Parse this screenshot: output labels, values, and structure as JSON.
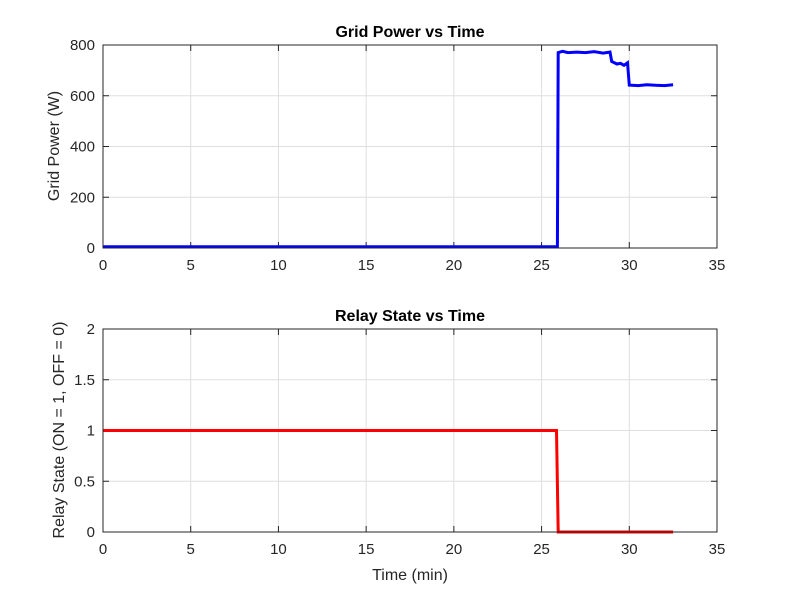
{
  "chart_data": [
    {
      "type": "line",
      "title": "Grid Power vs Time",
      "xlabel": "",
      "ylabel": "Grid Power (W)",
      "xlim": [
        0,
        35
      ],
      "ylim": [
        0,
        800
      ],
      "xticks": [
        0,
        5,
        10,
        15,
        20,
        25,
        30,
        35
      ],
      "yticks": [
        0,
        200,
        400,
        600,
        800
      ],
      "grid": true,
      "legend": "none",
      "series": [
        {
          "color": "#0000ff",
          "x": [
            0,
            25.9,
            25.95,
            26.2,
            26.5,
            27.0,
            27.5,
            28.0,
            28.5,
            28.9,
            29.0,
            29.3,
            29.5,
            29.7,
            29.9,
            30.0,
            30.5,
            31.0,
            31.5,
            32.0,
            32.5
          ],
          "y": [
            5,
            5,
            770,
            775,
            770,
            772,
            770,
            774,
            768,
            772,
            735,
            725,
            728,
            720,
            730,
            642,
            640,
            643,
            641,
            640,
            643
          ]
        }
      ]
    },
    {
      "type": "line",
      "title": "Relay State vs Time",
      "xlabel": "Time (min)",
      "ylabel": "Relay State (ON = 1, OFF = 0)",
      "xlim": [
        0,
        35
      ],
      "ylim": [
        0,
        2
      ],
      "xticks": [
        0,
        5,
        10,
        15,
        20,
        25,
        30,
        35
      ],
      "yticks": [
        0,
        0.5,
        1,
        1.5,
        2
      ],
      "grid": true,
      "legend": "none",
      "series": [
        {
          "color": "#ff0000",
          "x": [
            0,
            25.85,
            25.95,
            32.5
          ],
          "y": [
            1,
            1,
            0,
            0
          ]
        }
      ]
    }
  ]
}
